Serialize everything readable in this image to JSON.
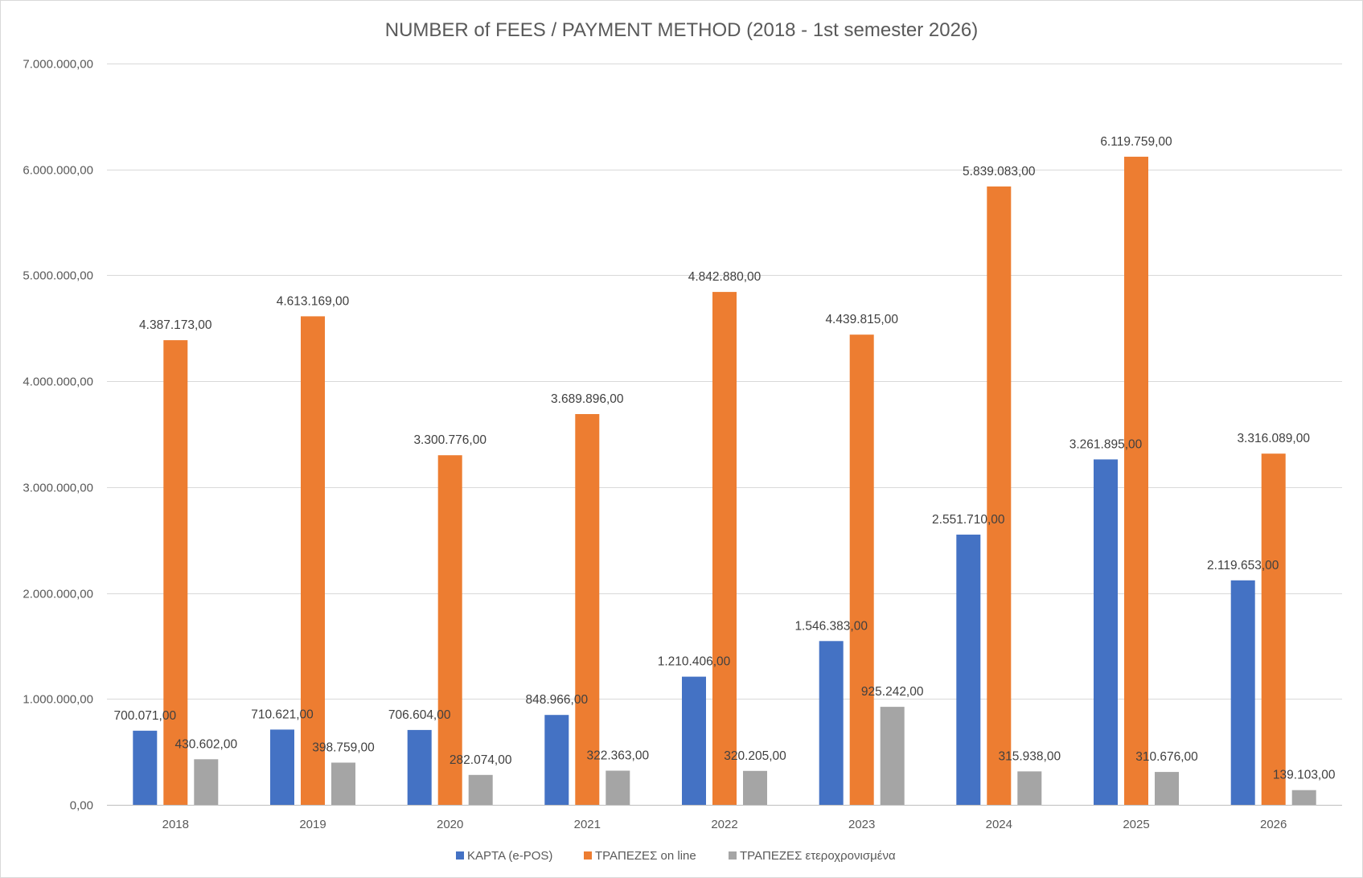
{
  "chart_data": {
    "type": "bar",
    "title": "NUMBER of FEES / PAYMENT METHOD (2018 - 1st semester 2026)",
    "xlabel": "",
    "ylabel": "",
    "categories": [
      "2018",
      "2019",
      "2020",
      "2021",
      "2022",
      "2023",
      "2024",
      "2025",
      "2026"
    ],
    "ylim": [
      0,
      7000000
    ],
    "y_ticks": [
      0,
      1000000,
      2000000,
      3000000,
      4000000,
      5000000,
      6000000,
      7000000
    ],
    "y_tick_labels": [
      "0,00",
      "1.000.000,00",
      "2.000.000,00",
      "3.000.000,00",
      "4.000.000,00",
      "5.000.000,00",
      "6.000.000,00",
      "7.000.000,00"
    ],
    "grid": true,
    "legend_position": "bottom",
    "series": [
      {
        "name": "ΚΑΡΤΑ (e-POS)",
        "color": "#4472c4",
        "values": [
          700071,
          710621,
          706604,
          848966,
          1210406,
          1546383,
          2551710,
          3261895,
          2119653
        ],
        "labels": [
          "700.071,00",
          "710.621,00",
          "706.604,00",
          "848.966,00",
          "1.210.406,00",
          "1.546.383,00",
          "2.551.710,00",
          "3.261.895,00",
          "2.119.653,00"
        ]
      },
      {
        "name": "ΤΡΑΠΕΖΕΣ on line",
        "color": "#ed7d31",
        "values": [
          4387173,
          4613169,
          3300776,
          3689896,
          4842880,
          4439815,
          5839083,
          6119759,
          3316089
        ],
        "labels": [
          "4.387.173,00",
          "4.613.169,00",
          "3.300.776,00",
          "3.689.896,00",
          "4.842.880,00",
          "4.439.815,00",
          "5.839.083,00",
          "6.119.759,00",
          "3.316.089,00"
        ]
      },
      {
        "name": "ΤΡΑΠΕΖΕΣ ετεροχρονισμένα",
        "color": "#a5a5a5",
        "values": [
          430602,
          398759,
          282074,
          322363,
          320205,
          925242,
          315938,
          310676,
          139103
        ],
        "labels": [
          "430.602,00",
          "398.759,00",
          "282.074,00",
          "322.363,00",
          "320.205,00",
          "925.242,00",
          "315.938,00",
          "310.676,00",
          "139.103,00"
        ]
      }
    ]
  }
}
